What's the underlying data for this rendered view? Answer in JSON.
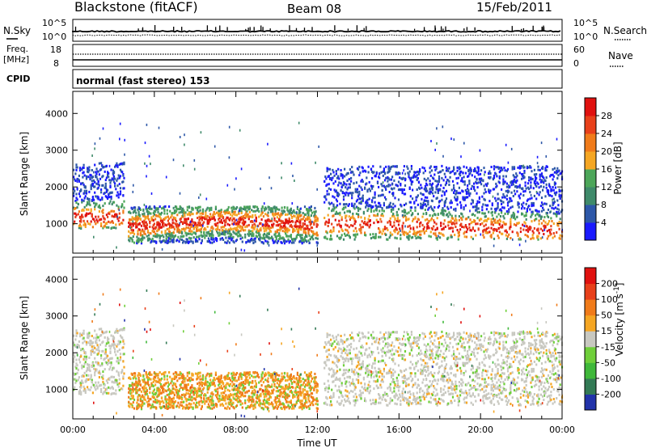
{
  "header": {
    "station": "Blackstone (fitACF)",
    "beam": "Beam 08",
    "date": "15/Feb/2011"
  },
  "noise_panel": {
    "left_label": "N.Sky",
    "right_label": "N.Search",
    "left_ticks": [
      "10^5",
      "10^0"
    ],
    "right_ticks": [
      "10^5",
      "10^0"
    ]
  },
  "freq_panel": {
    "left_label_1": "Freq.",
    "left_label_2": "[MHz]",
    "right_label": "Nave",
    "left_ticks": [
      "18",
      "8"
    ],
    "right_ticks": [
      "60",
      "0"
    ]
  },
  "cpid_panel": {
    "left_label": "CPID",
    "mode_text": "normal (fast stereo) 153"
  },
  "chart_data": [
    {
      "type": "heatmap",
      "name": "power",
      "ylabel": "Slant Range [km]",
      "ylim": [
        200,
        4600
      ],
      "yticks": [
        1000,
        2000,
        3000,
        4000
      ],
      "xlabel": "Time UT",
      "xlim": [
        0,
        24
      ],
      "xticks": [
        0,
        4,
        8,
        12,
        16,
        20,
        24
      ],
      "xtick_labels": [
        "00:00",
        "04:00",
        "08:00",
        "12:00",
        "16:00",
        "20:00",
        "00:00"
      ],
      "colorbar": {
        "label": "Power [dB]",
        "ticks": [
          "4",
          "8",
          "12",
          "16",
          "20",
          "24",
          "28"
        ],
        "colors": [
          "#1a1aff",
          "#2d57a8",
          "#3f8a6a",
          "#4da659",
          "#f5a623",
          "#f07b1a",
          "#e8401a",
          "#e0110f"
        ]
      },
      "bands": [
        {
          "t0": 0.0,
          "t1": 2.5,
          "r0": 900,
          "r1": 2700,
          "core": 1200
        },
        {
          "t0": 2.7,
          "t1": 12.0,
          "r0": 500,
          "r1": 1500,
          "core": 950
        },
        {
          "t0": 12.3,
          "t1": 24.0,
          "r0": 600,
          "r1": 2600,
          "core": 1050
        }
      ]
    },
    {
      "type": "heatmap",
      "name": "velocity",
      "ylabel": "Slant Range [km]",
      "ylim": [
        200,
        4600
      ],
      "yticks": [
        1000,
        2000,
        3000,
        4000
      ],
      "xlabel": "Time UT",
      "xlim": [
        0,
        24
      ],
      "xticks": [
        0,
        4,
        8,
        12,
        16,
        20,
        24
      ],
      "xtick_labels": [
        "00:00",
        "04:00",
        "08:00",
        "12:00",
        "16:00",
        "20:00",
        "00:00"
      ],
      "colorbar": {
        "label": "Velocity [m s^-1]",
        "ticks": [
          "200",
          "100",
          "50",
          "15",
          "-15",
          "-50",
          "-100",
          "-200"
        ],
        "colors": [
          "#2233aa",
          "#337a55",
          "#3fb83a",
          "#6fcf3a",
          "#c8c8c0",
          "#f5a623",
          "#f07b1a",
          "#e8401a",
          "#e0110f"
        ]
      }
    }
  ],
  "time_label": "Time UT"
}
